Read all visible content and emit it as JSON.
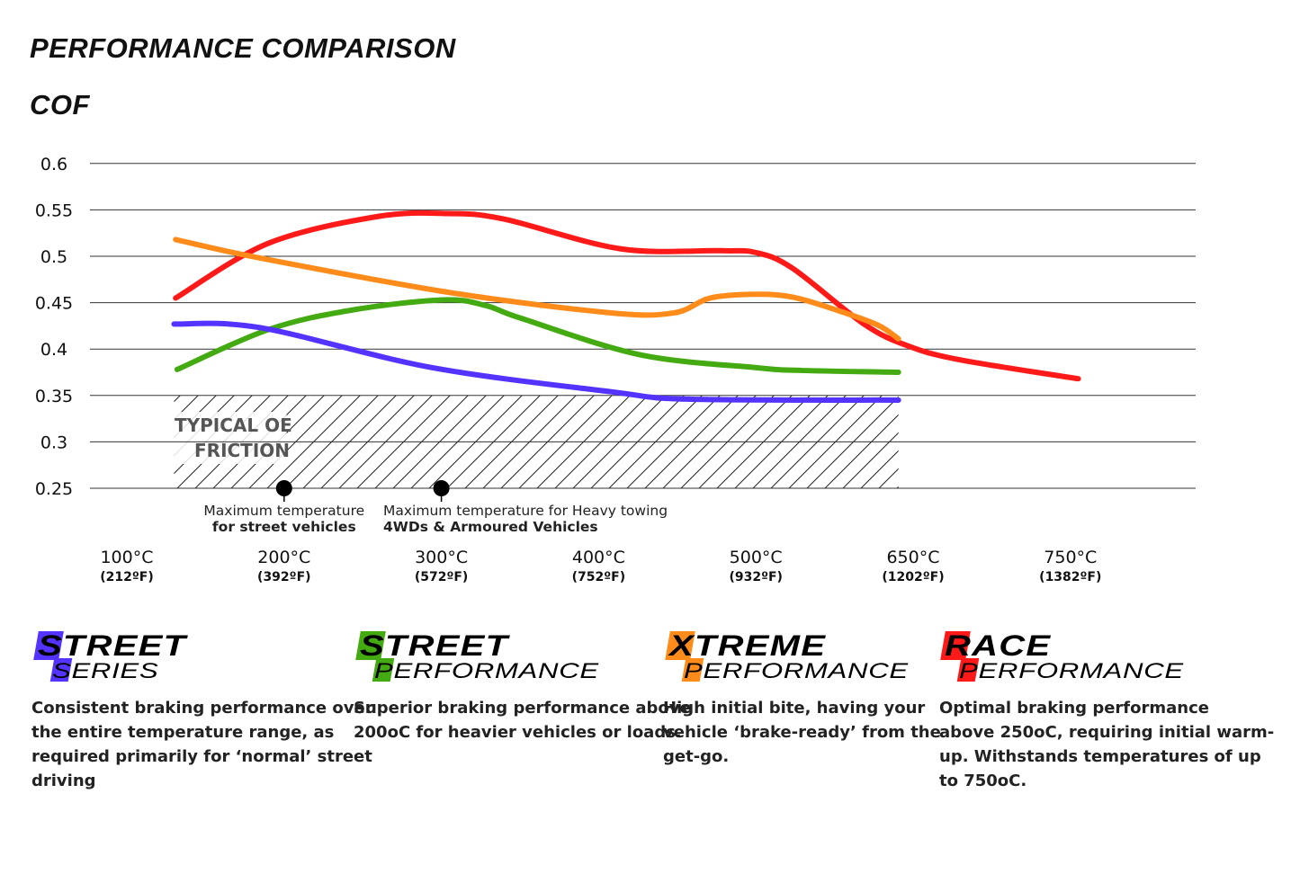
{
  "header": {
    "title": "PERFORMANCE COMPARISON",
    "subtitle": "COF"
  },
  "chart_data": {
    "type": "line",
    "ylabel": "COF",
    "ylim": [
      0.25,
      0.6
    ],
    "y_ticks": [
      "0.6",
      "0.55",
      "0.5",
      "0.45",
      "0.4",
      "0.35",
      "0.3",
      "0.25"
    ],
    "y_tick_values": [
      0.6,
      0.55,
      0.5,
      0.45,
      0.4,
      0.35,
      0.3,
      0.25
    ],
    "x_ticks": [
      {
        "c": "100°C",
        "f": "(212ºF)",
        "value": 100
      },
      {
        "c": "200°C",
        "f": "(392ºF)",
        "value": 200
      },
      {
        "c": "300°C",
        "f": "(572ºF)",
        "value": 300
      },
      {
        "c": "400°C",
        "f": "(752ºF)",
        "value": 400
      },
      {
        "c": "500°C",
        "f": "(932ºF)",
        "value": 500
      },
      {
        "c": "650°C",
        "f": "(1202ºF)",
        "value": 650
      },
      {
        "c": "750°C",
        "f": "(1382ºF)",
        "value": 750
      }
    ],
    "grid": true,
    "series": [
      {
        "key": "race",
        "color": "#ff1a1a",
        "points": [
          [
            131,
            0.455
          ],
          [
            190,
            0.514
          ],
          [
            260,
            0.543
          ],
          [
            305,
            0.546
          ],
          [
            340,
            0.54
          ],
          [
            414,
            0.508
          ],
          [
            477,
            0.506
          ],
          [
            500,
            0.504
          ],
          [
            535,
            0.487
          ],
          [
            603,
            0.427
          ],
          [
            646,
            0.403
          ],
          [
            681,
            0.388
          ],
          [
            755,
            0.368
          ]
        ]
      },
      {
        "key": "xtreme",
        "color": "#ff8c1a",
        "points": [
          [
            131,
            0.518
          ],
          [
            185,
            0.498
          ],
          [
            305,
            0.461
          ],
          [
            408,
            0.439
          ],
          [
            448,
            0.439
          ],
          [
            471,
            0.455
          ],
          [
            500,
            0.459
          ],
          [
            535,
            0.456
          ],
          [
            577,
            0.442
          ],
          [
            616,
            0.426
          ],
          [
            636,
            0.411
          ]
        ]
      },
      {
        "key": "street_performance",
        "color": "#44aa11",
        "points": [
          [
            132,
            0.378
          ],
          [
            190,
            0.421
          ],
          [
            243,
            0.442
          ],
          [
            301,
            0.453
          ],
          [
            328,
            0.447
          ],
          [
            351,
            0.433
          ],
          [
            426,
            0.394
          ],
          [
            500,
            0.38
          ],
          [
            543,
            0.377
          ],
          [
            636,
            0.375
          ]
        ]
      },
      {
        "key": "street_series",
        "color": "#5533ff",
        "points": [
          [
            130,
            0.427
          ],
          [
            185,
            0.423
          ],
          [
            294,
            0.38
          ],
          [
            408,
            0.354
          ],
          [
            457,
            0.346
          ],
          [
            636,
            0.345
          ]
        ]
      }
    ],
    "band": {
      "label_line1": "TYPICAL OE",
      "label_line2": "FRICTION",
      "x_range": [
        130,
        636
      ],
      "y_range": [
        0.25,
        0.35
      ]
    },
    "annotations": [
      {
        "x": 200,
        "line1": "Maximum temperature",
        "line2": "for street vehicles"
      },
      {
        "x": 300,
        "line1": "Maximum temperature for Heavy towing",
        "line2": "4WDs & Armoured Vehicles"
      }
    ]
  },
  "legend": [
    {
      "first": "S",
      "rest": "TREET",
      "sub_first": "S",
      "sub_rest": "ERIES",
      "color": "#5533ff",
      "desc": [
        "Consistent braking performance over",
        "the entire temperature range, as",
        "required primarily for ‘normal’ street",
        "driving"
      ]
    },
    {
      "first": "S",
      "rest": "TREET",
      "sub_first": "P",
      "sub_rest": "ERFORMANCE",
      "color": "#44aa11",
      "desc": [
        "Superior braking performance above",
        "200oC for heavier vehicles or loads."
      ]
    },
    {
      "first": "X",
      "rest": "TREME",
      "sub_first": "P",
      "sub_rest": "ERFORMANCE",
      "color": "#ff8c1a",
      "desc": [
        "High initial bite, having your",
        "vehicle ‘brake-ready’ from the",
        "get-go."
      ]
    },
    {
      "first": "R",
      "rest": "ACE",
      "sub_first": "P",
      "sub_rest": "ERFORMANCE",
      "color": "#ff1a1a",
      "desc": [
        "Optimal braking performance",
        "above 250oC, requiring initial warm-",
        "up. Withstands temperatures of up",
        "to 750oC."
      ]
    }
  ]
}
